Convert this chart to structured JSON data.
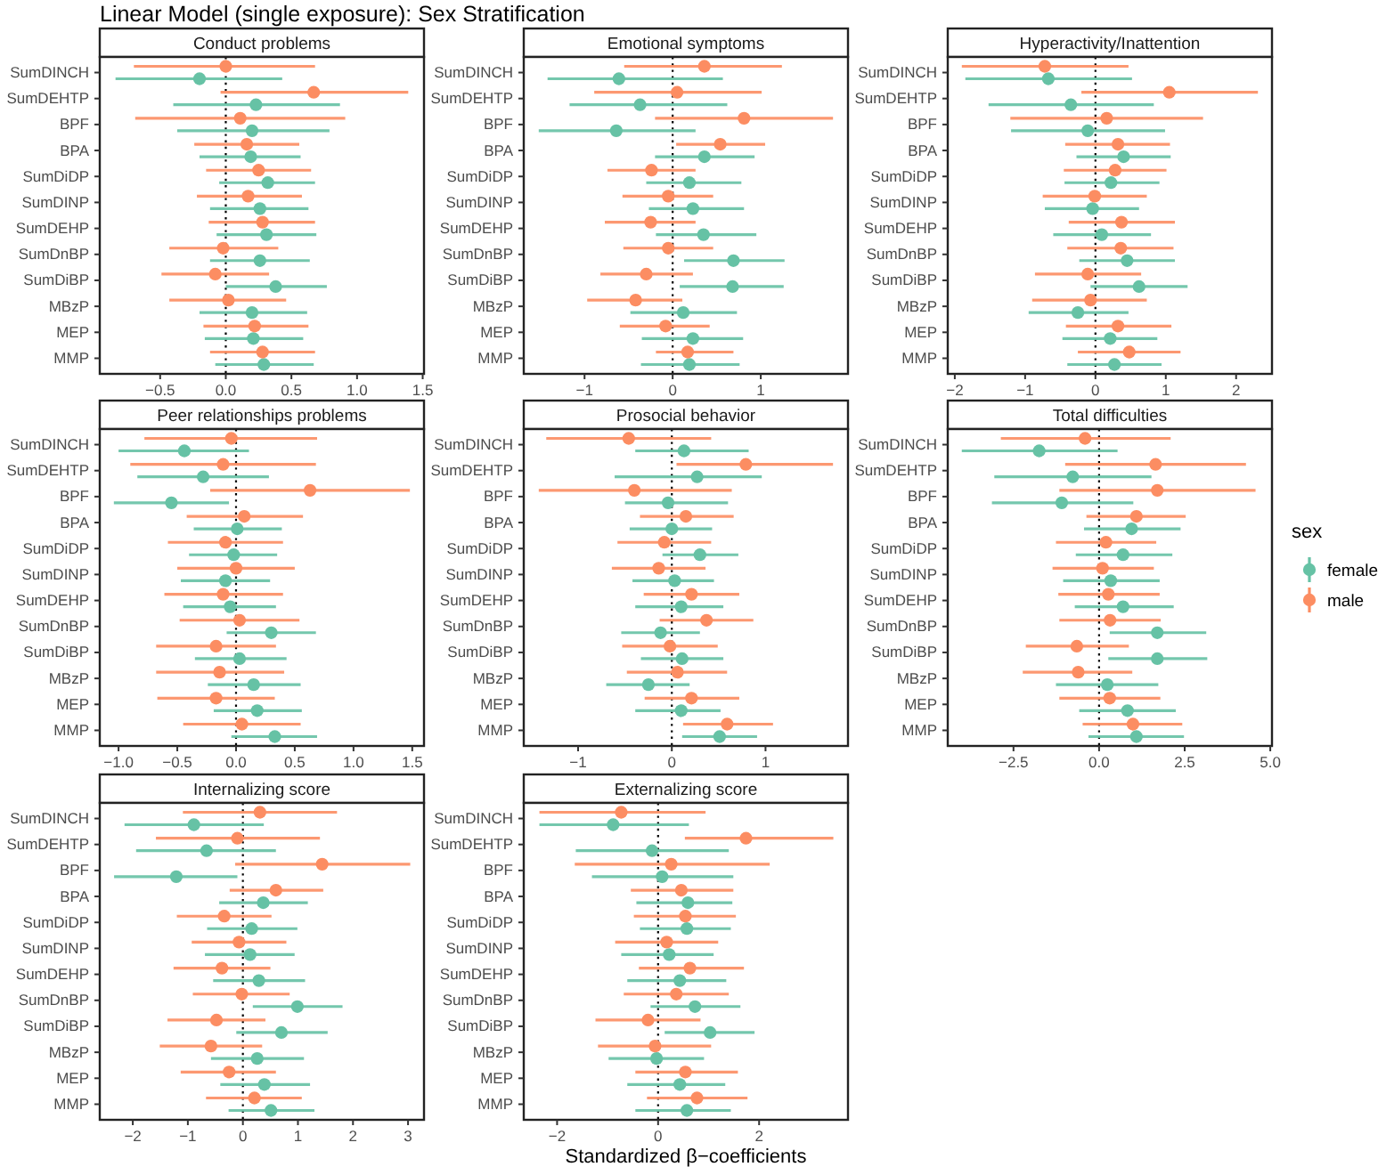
{
  "chart_data": [
    {
      "type": "scatter",
      "orientation": "horizontal",
      "title": "Conduct problems",
      "annotations": [
        "Linear Model (single exposure): Sex Stratification"
      ],
      "marker": "circle",
      "legend": "right",
      "legend_title": "sex",
      "categories": [
        "SumDINCH",
        "SumDEHTP",
        "BPF",
        "BPA",
        "SumDiDP",
        "SumDINP",
        "SumDEHP",
        "SumDnBP",
        "SumDiBP",
        "MBzP",
        "MEP",
        "MMP"
      ],
      "xlim": [
        -0.96,
        1.51
      ],
      "xticks": [
        {
          "value": -0.5,
          "label": "−0.5"
        },
        {
          "value": 0,
          "label": "0.0"
        },
        {
          "value": 0.5,
          "label": "0.5"
        },
        {
          "value": 1,
          "label": "1.0"
        },
        {
          "value": 1.5,
          "label": "1.5"
        }
      ],
      "ref_lines": [
        {
          "axis": "x",
          "value": 0,
          "line_style": "dotted",
          "color": "#000000"
        }
      ],
      "series": [
        {
          "name": "female",
          "color": "#66c2a5",
          "values": [
            -0.2,
            0.23,
            0.2,
            0.19,
            0.32,
            0.26,
            0.31,
            0.26,
            0.38,
            0.2,
            0.21,
            0.29
          ],
          "errors": [
            [
              -0.84,
              0.43
            ],
            [
              -0.4,
              0.87
            ],
            [
              -0.37,
              0.79
            ],
            [
              -0.2,
              0.57
            ],
            [
              -0.05,
              0.68
            ],
            [
              -0.12,
              0.63
            ],
            [
              -0.07,
              0.69
            ],
            [
              -0.12,
              0.64
            ],
            [
              0,
              0.77
            ],
            [
              -0.2,
              0.62
            ],
            [
              -0.16,
              0.59
            ],
            [
              -0.08,
              0.67
            ]
          ]
        },
        {
          "name": "male",
          "color": "#fc8d62",
          "values": [
            0,
            0.67,
            0.11,
            0.16,
            0.25,
            0.17,
            0.28,
            -0.02,
            -0.08,
            0.02,
            0.22,
            0.28
          ],
          "errors": [
            [
              -0.7,
              0.68
            ],
            [
              -0.04,
              1.39
            ],
            [
              -0.69,
              0.91
            ],
            [
              -0.24,
              0.56
            ],
            [
              -0.15,
              0.65
            ],
            [
              -0.22,
              0.58
            ],
            [
              -0.13,
              0.68
            ],
            [
              -0.43,
              0.4
            ],
            [
              -0.49,
              0.33
            ],
            [
              -0.43,
              0.46
            ],
            [
              -0.17,
              0.63
            ],
            [
              -0.12,
              0.68
            ]
          ]
        }
      ]
    },
    {
      "type": "scatter",
      "orientation": "horizontal",
      "title": "Emotional symptoms",
      "marker": "circle",
      "categories": [
        "SumDINCH",
        "SumDEHTP",
        "BPF",
        "BPA",
        "SumDiDP",
        "SumDINP",
        "SumDEHP",
        "SumDnBP",
        "SumDiBP",
        "MBzP",
        "MEP",
        "MMP"
      ],
      "xlim": [
        -1.69,
        1.99
      ],
      "xticks": [
        {
          "value": -1,
          "label": "−1"
        },
        0,
        1
      ],
      "ref_lines": [
        {
          "axis": "x",
          "value": 0,
          "line_style": "dotted",
          "color": "#000000"
        }
      ],
      "series": [
        {
          "name": "female",
          "color": "#66c2a5",
          "values": [
            -0.61,
            -0.37,
            -0.64,
            0.36,
            0.19,
            0.23,
            0.35,
            0.69,
            0.68,
            0.12,
            0.23,
            0.19
          ],
          "errors": [
            [
              -1.42,
              0.57
            ],
            [
              -1.17,
              0.62
            ],
            [
              -1.52,
              0.26
            ],
            [
              -0.2,
              0.93
            ],
            [
              -0.3,
              0.78
            ],
            [
              -0.27,
              0.81
            ],
            [
              -0.19,
              0.95
            ],
            [
              0.13,
              1.27
            ],
            [
              0.08,
              1.26
            ],
            [
              -0.48,
              0.73
            ],
            [
              -0.35,
              0.8
            ],
            [
              -0.36,
              0.76
            ]
          ]
        },
        {
          "name": "male",
          "color": "#fc8d62",
          "values": [
            0.36,
            0.05,
            0.81,
            0.54,
            -0.24,
            -0.05,
            -0.25,
            -0.05,
            -0.3,
            -0.42,
            -0.08,
            0.17
          ],
          "errors": [
            [
              -0.55,
              1.24
            ],
            [
              -0.89,
              1.01
            ],
            [
              -0.2,
              1.82
            ],
            [
              0.04,
              1.05
            ],
            [
              -0.74,
              0.26
            ],
            [
              -0.57,
              0.46
            ],
            [
              -0.77,
              0.26
            ],
            [
              -0.56,
              0.46
            ],
            [
              -0.82,
              0.23
            ],
            [
              -0.97,
              0.11
            ],
            [
              -0.6,
              0.42
            ],
            [
              -0.19,
              0.69
            ]
          ]
        }
      ]
    },
    {
      "type": "scatter",
      "orientation": "horizontal",
      "title": "Hyperactivity/Inattention",
      "marker": "circle",
      "categories": [
        "SumDINCH",
        "SumDEHTP",
        "BPF",
        "BPA",
        "SumDiDP",
        "SumDINP",
        "SumDEHP",
        "SumDnBP",
        "SumDiBP",
        "MBzP",
        "MEP",
        "MMP"
      ],
      "xlim": [
        -2.1,
        2.51
      ],
      "xticks": [
        {
          "value": -2,
          "label": "−2"
        },
        {
          "value": -1,
          "label": "−1"
        },
        0,
        1,
        2
      ],
      "ref_lines": [
        {
          "axis": "x",
          "value": 0,
          "line_style": "dotted",
          "color": "#000000"
        }
      ],
      "series": [
        {
          "name": "female",
          "color": "#66c2a5",
          "values": [
            -0.67,
            -0.35,
            -0.11,
            0.4,
            0.22,
            -0.04,
            0.09,
            0.45,
            0.62,
            -0.25,
            0.21,
            0.27
          ],
          "errors": [
            [
              -1.85,
              0.52
            ],
            [
              -1.52,
              0.83
            ],
            [
              -1.2,
              0.99
            ],
            [
              -0.27,
              1.07
            ],
            [
              -0.44,
              0.91
            ],
            [
              -0.72,
              0.62
            ],
            [
              -0.6,
              0.79
            ],
            [
              -0.23,
              1.13
            ],
            [
              -0.07,
              1.31
            ],
            [
              -0.95,
              0.47
            ],
            [
              -0.47,
              0.88
            ],
            [
              -0.4,
              0.94
            ]
          ]
        },
        {
          "name": "male",
          "color": "#fc8d62",
          "values": [
            -0.72,
            1.05,
            0.16,
            0.32,
            0.28,
            -0.01,
            0.37,
            0.36,
            -0.11,
            -0.07,
            0.32,
            0.48
          ],
          "errors": [
            [
              -1.9,
              0.47
            ],
            [
              -0.2,
              2.31
            ],
            [
              -1.21,
              1.53
            ],
            [
              -0.43,
              1.06
            ],
            [
              -0.45,
              1.01
            ],
            [
              -0.75,
              0.73
            ],
            [
              -0.38,
              1.13
            ],
            [
              -0.4,
              1.11
            ],
            [
              -0.86,
              0.65
            ],
            [
              -0.9,
              0.73
            ],
            [
              -0.42,
              1.08
            ],
            [
              -0.25,
              1.21
            ]
          ]
        }
      ]
    },
    {
      "type": "scatter",
      "orientation": "horizontal",
      "title": "Peer relationships problems",
      "marker": "circle",
      "categories": [
        "SumDINCH",
        "SumDEHTP",
        "BPF",
        "BPA",
        "SumDiDP",
        "SumDINP",
        "SumDEHP",
        "SumDnBP",
        "SumDiBP",
        "MBzP",
        "MEP",
        "MMP"
      ],
      "xlim": [
        -1.16,
        1.6
      ],
      "xticks": [
        {
          "value": -1,
          "label": "−1.0"
        },
        {
          "value": -0.5,
          "label": "−0.5"
        },
        {
          "value": 0,
          "label": "0.0"
        },
        {
          "value": 0.5,
          "label": "0.5"
        },
        {
          "value": 1,
          "label": "1.0"
        },
        {
          "value": 1.5,
          "label": "1.5"
        }
      ],
      "ref_lines": [
        {
          "axis": "x",
          "value": 0,
          "line_style": "dotted",
          "color": "#000000"
        }
      ],
      "series": [
        {
          "name": "female",
          "color": "#66c2a5",
          "values": [
            -0.44,
            -0.28,
            -0.55,
            0.01,
            -0.02,
            -0.09,
            -0.05,
            0.3,
            0.03,
            0.15,
            0.18,
            0.33
          ],
          "errors": [
            [
              -1,
              0.11
            ],
            [
              -0.84,
              0.28
            ],
            [
              -1.04,
              -0.06
            ],
            [
              -0.36,
              0.39
            ],
            [
              -0.4,
              0.35
            ],
            [
              -0.47,
              0.29
            ],
            [
              -0.45,
              0.34
            ],
            [
              -0.08,
              0.68
            ],
            [
              -0.35,
              0.43
            ],
            [
              -0.24,
              0.55
            ],
            [
              -0.19,
              0.56
            ],
            [
              -0.04,
              0.69
            ]
          ]
        },
        {
          "name": "male",
          "color": "#fc8d62",
          "values": [
            -0.04,
            -0.11,
            0.63,
            0.07,
            -0.09,
            0,
            -0.11,
            0.03,
            -0.17,
            -0.14,
            -0.17,
            0.05
          ],
          "errors": [
            [
              -0.78,
              0.69
            ],
            [
              -0.9,
              0.68
            ],
            [
              -0.22,
              1.48
            ],
            [
              -0.42,
              0.57
            ],
            [
              -0.58,
              0.4
            ],
            [
              -0.5,
              0.5
            ],
            [
              -0.61,
              0.4
            ],
            [
              -0.48,
              0.54
            ],
            [
              -0.68,
              0.34
            ],
            [
              -0.68,
              0.41
            ],
            [
              -0.67,
              0.33
            ],
            [
              -0.45,
              0.55
            ]
          ]
        }
      ]
    },
    {
      "type": "scatter",
      "orientation": "horizontal",
      "title": "Prosocial behavior",
      "marker": "circle",
      "categories": [
        "SumDINCH",
        "SumDEHTP",
        "BPF",
        "BPA",
        "SumDiDP",
        "SumDINP",
        "SumDEHP",
        "SumDnBP",
        "SumDiBP",
        "MBzP",
        "MEP",
        "MMP"
      ],
      "xlim": [
        -1.58,
        1.88
      ],
      "xticks": [
        {
          "value": -1,
          "label": "−1"
        },
        0,
        1
      ],
      "ref_lines": [
        {
          "axis": "x",
          "value": 0,
          "line_style": "dotted",
          "color": "#000000"
        }
      ],
      "series": [
        {
          "name": "female",
          "color": "#66c2a5",
          "values": [
            0.13,
            0.27,
            -0.04,
            0,
            0.3,
            0.03,
            0.1,
            -0.12,
            0.11,
            -0.25,
            0.1,
            0.51
          ],
          "errors": [
            [
              -0.39,
              0.82
            ],
            [
              -0.61,
              0.96
            ],
            [
              -0.5,
              0.6
            ],
            [
              -0.45,
              0.43
            ],
            [
              -0.1,
              0.71
            ],
            [
              -0.42,
              0.45
            ],
            [
              -0.39,
              0.55
            ],
            [
              -0.54,
              0.3
            ],
            [
              -0.33,
              0.55
            ],
            [
              -0.7,
              0.19
            ],
            [
              -0.39,
              0.52
            ],
            [
              0.11,
              0.91
            ]
          ]
        },
        {
          "name": "male",
          "color": "#fc8d62",
          "values": [
            -0.46,
            0.79,
            -0.4,
            0.15,
            -0.08,
            -0.14,
            0.21,
            0.37,
            -0.02,
            0.06,
            0.21,
            0.59
          ],
          "errors": [
            [
              -1.34,
              0.42
            ],
            [
              0.05,
              1.72
            ],
            [
              -1.42,
              0.64
            ],
            [
              -0.34,
              0.66
            ],
            [
              -0.58,
              0.42
            ],
            [
              -0.64,
              0.36
            ],
            [
              -0.3,
              0.72
            ],
            [
              -0.13,
              0.87
            ],
            [
              -0.53,
              0.49
            ],
            [
              -0.48,
              0.59
            ],
            [
              -0.29,
              0.72
            ],
            [
              0.12,
              1.08
            ]
          ]
        }
      ]
    },
    {
      "type": "scatter",
      "orientation": "horizontal",
      "title": "Total difficulties",
      "marker": "circle",
      "categories": [
        "SumDINCH",
        "SumDEHTP",
        "BPF",
        "BPA",
        "SumDiDP",
        "SumDINP",
        "SumDEHP",
        "SumDnBP",
        "SumDiBP",
        "MBzP",
        "MEP",
        "MMP"
      ],
      "xlim": [
        -4.42,
        5.05
      ],
      "xticks": [
        {
          "value": -2.5,
          "label": "−2.5"
        },
        {
          "value": 0,
          "label": "0.0"
        },
        {
          "value": 2.5,
          "label": "2.5"
        },
        {
          "value": 5,
          "label": "5.0"
        }
      ],
      "ref_lines": [
        {
          "axis": "x",
          "value": 0,
          "line_style": "dotted",
          "color": "#000000"
        }
      ],
      "series": [
        {
          "name": "female",
          "color": "#66c2a5",
          "values": [
            -1.75,
            -0.77,
            -1.09,
            0.95,
            0.7,
            0.34,
            0.7,
            1.7,
            1.7,
            0.24,
            0.83,
            1.09
          ],
          "errors": [
            [
              -4.01,
              0.54
            ],
            [
              -3.06,
              1.53
            ],
            [
              -3.13,
              1
            ],
            [
              -0.44,
              2.38
            ],
            [
              -0.68,
              2.14
            ],
            [
              -1.05,
              1.77
            ],
            [
              -0.71,
              2.18
            ],
            [
              0.31,
              3.13
            ],
            [
              0.27,
              3.16
            ],
            [
              -1.26,
              1.73
            ],
            [
              -0.58,
              2.24
            ],
            [
              -0.31,
              2.48
            ]
          ]
        },
        {
          "name": "male",
          "color": "#fc8d62",
          "values": [
            -0.41,
            1.65,
            1.7,
            1.09,
            0.2,
            0.1,
            0.27,
            0.32,
            -0.65,
            -0.61,
            0.31,
            0.99
          ],
          "errors": [
            [
              -2.87,
              2.09
            ],
            [
              -0.99,
              4.29
            ],
            [
              -1.16,
              4.57
            ],
            [
              -0.37,
              2.53
            ],
            [
              -1.26,
              1.67
            ],
            [
              -1.36,
              1.6
            ],
            [
              -1.19,
              1.77
            ],
            [
              -1.16,
              1.8
            ],
            [
              -2.14,
              0.87
            ],
            [
              -2.23,
              0.97
            ],
            [
              -1.16,
              1.79
            ],
            [
              -0.48,
              2.43
            ]
          ]
        }
      ]
    },
    {
      "type": "scatter",
      "orientation": "horizontal",
      "title": "Internalizing score",
      "marker": "circle",
      "categories": [
        "SumDINCH",
        "SumDEHTP",
        "BPF",
        "BPA",
        "SumDiDP",
        "SumDINP",
        "SumDEHP",
        "SumDnBP",
        "SumDiBP",
        "MBzP",
        "MEP",
        "MMP"
      ],
      "xlim": [
        -2.6,
        3.29
      ],
      "xticks": [
        {
          "value": -2,
          "label": "−2"
        },
        {
          "value": -1,
          "label": "−1"
        },
        0,
        1,
        2,
        3
      ],
      "ref_lines": [
        {
          "axis": "x",
          "value": 0,
          "line_style": "dotted",
          "color": "#000000"
        }
      ],
      "series": [
        {
          "name": "female",
          "color": "#66c2a5",
          "values": [
            -0.89,
            -0.66,
            -1.21,
            0.37,
            0.16,
            0.13,
            0.29,
            0.99,
            0.7,
            0.26,
            0.39,
            0.51
          ],
          "errors": [
            [
              -2.15,
              0.38
            ],
            [
              -1.94,
              0.6
            ],
            [
              -2.34,
              -0.1
            ],
            [
              -0.43,
              1.18
            ],
            [
              -0.65,
              0.99
            ],
            [
              -0.69,
              0.94
            ],
            [
              -0.54,
              1.13
            ],
            [
              0.18,
              1.81
            ],
            [
              -0.12,
              1.54
            ],
            [
              -0.58,
              1.11
            ],
            [
              -0.41,
              1.22
            ],
            [
              -0.26,
              1.3
            ]
          ]
        },
        {
          "name": "male",
          "color": "#fc8d62",
          "values": [
            0.31,
            -0.1,
            1.44,
            0.6,
            -0.34,
            -0.07,
            -0.38,
            -0.02,
            -0.48,
            -0.58,
            -0.25,
            0.21
          ],
          "errors": [
            [
              -1.09,
              1.71
            ],
            [
              -1.58,
              1.4
            ],
            [
              -0.14,
              3.04
            ],
            [
              -0.24,
              1.46
            ],
            [
              -1.2,
              0.52
            ],
            [
              -0.93,
              0.79
            ],
            [
              -1.26,
              0.5
            ],
            [
              -0.91,
              0.85
            ],
            [
              -1.37,
              0.41
            ],
            [
              -1.51,
              0.35
            ],
            [
              -1.13,
              0.6
            ],
            [
              -0.67,
              1.07
            ]
          ]
        }
      ]
    },
    {
      "type": "scatter",
      "orientation": "horizontal",
      "title": "Externalizing score",
      "marker": "circle",
      "xlabel": "Standardized β−coefficients",
      "categories": [
        "SumDINCH",
        "SumDEHTP",
        "BPF",
        "BPA",
        "SumDiDP",
        "SumDINP",
        "SumDEHP",
        "SumDnBP",
        "SumDiBP",
        "MBzP",
        "MEP",
        "MMP"
      ],
      "xlim": [
        -2.66,
        3.76
      ],
      "xticks": [
        {
          "value": -2,
          "label": "−2"
        },
        0,
        2
      ],
      "ref_lines": [
        {
          "axis": "x",
          "value": 0,
          "line_style": "dotted",
          "color": "#000000"
        }
      ],
      "series": [
        {
          "name": "female",
          "color": "#66c2a5",
          "values": [
            -0.89,
            -0.12,
            0.08,
            0.59,
            0.57,
            0.22,
            0.43,
            0.73,
            1.03,
            -0.03,
            0.43,
            0.57
          ],
          "errors": [
            [
              -2.35,
              0.61
            ],
            [
              -1.63,
              1.4
            ],
            [
              -1.31,
              1.49
            ],
            [
              -0.43,
              1.47
            ],
            [
              -0.36,
              1.44
            ],
            [
              -0.73,
              1.1
            ],
            [
              -0.61,
              1.35
            ],
            [
              -0.15,
              1.63
            ],
            [
              0.13,
              1.91
            ],
            [
              -0.98,
              0.91
            ],
            [
              -0.61,
              1.33
            ],
            [
              -0.45,
              1.44
            ]
          ]
        },
        {
          "name": "male",
          "color": "#fc8d62",
          "values": [
            -0.73,
            1.74,
            0.26,
            0.46,
            0.54,
            0.17,
            0.63,
            0.36,
            -0.2,
            -0.06,
            0.54,
            0.77
          ],
          "errors": [
            [
              -2.35,
              0.94
            ],
            [
              0.53,
              3.47
            ],
            [
              -1.65,
              2.21
            ],
            [
              -0.54,
              1.49
            ],
            [
              -0.48,
              1.54
            ],
            [
              -0.85,
              1.19
            ],
            [
              -0.38,
              1.7
            ],
            [
              -0.68,
              1.4
            ],
            [
              -1.24,
              0.84
            ],
            [
              -1.19,
              1.05
            ],
            [
              -0.45,
              1.58
            ],
            [
              -0.22,
              1.77
            ]
          ]
        }
      ]
    }
  ]
}
